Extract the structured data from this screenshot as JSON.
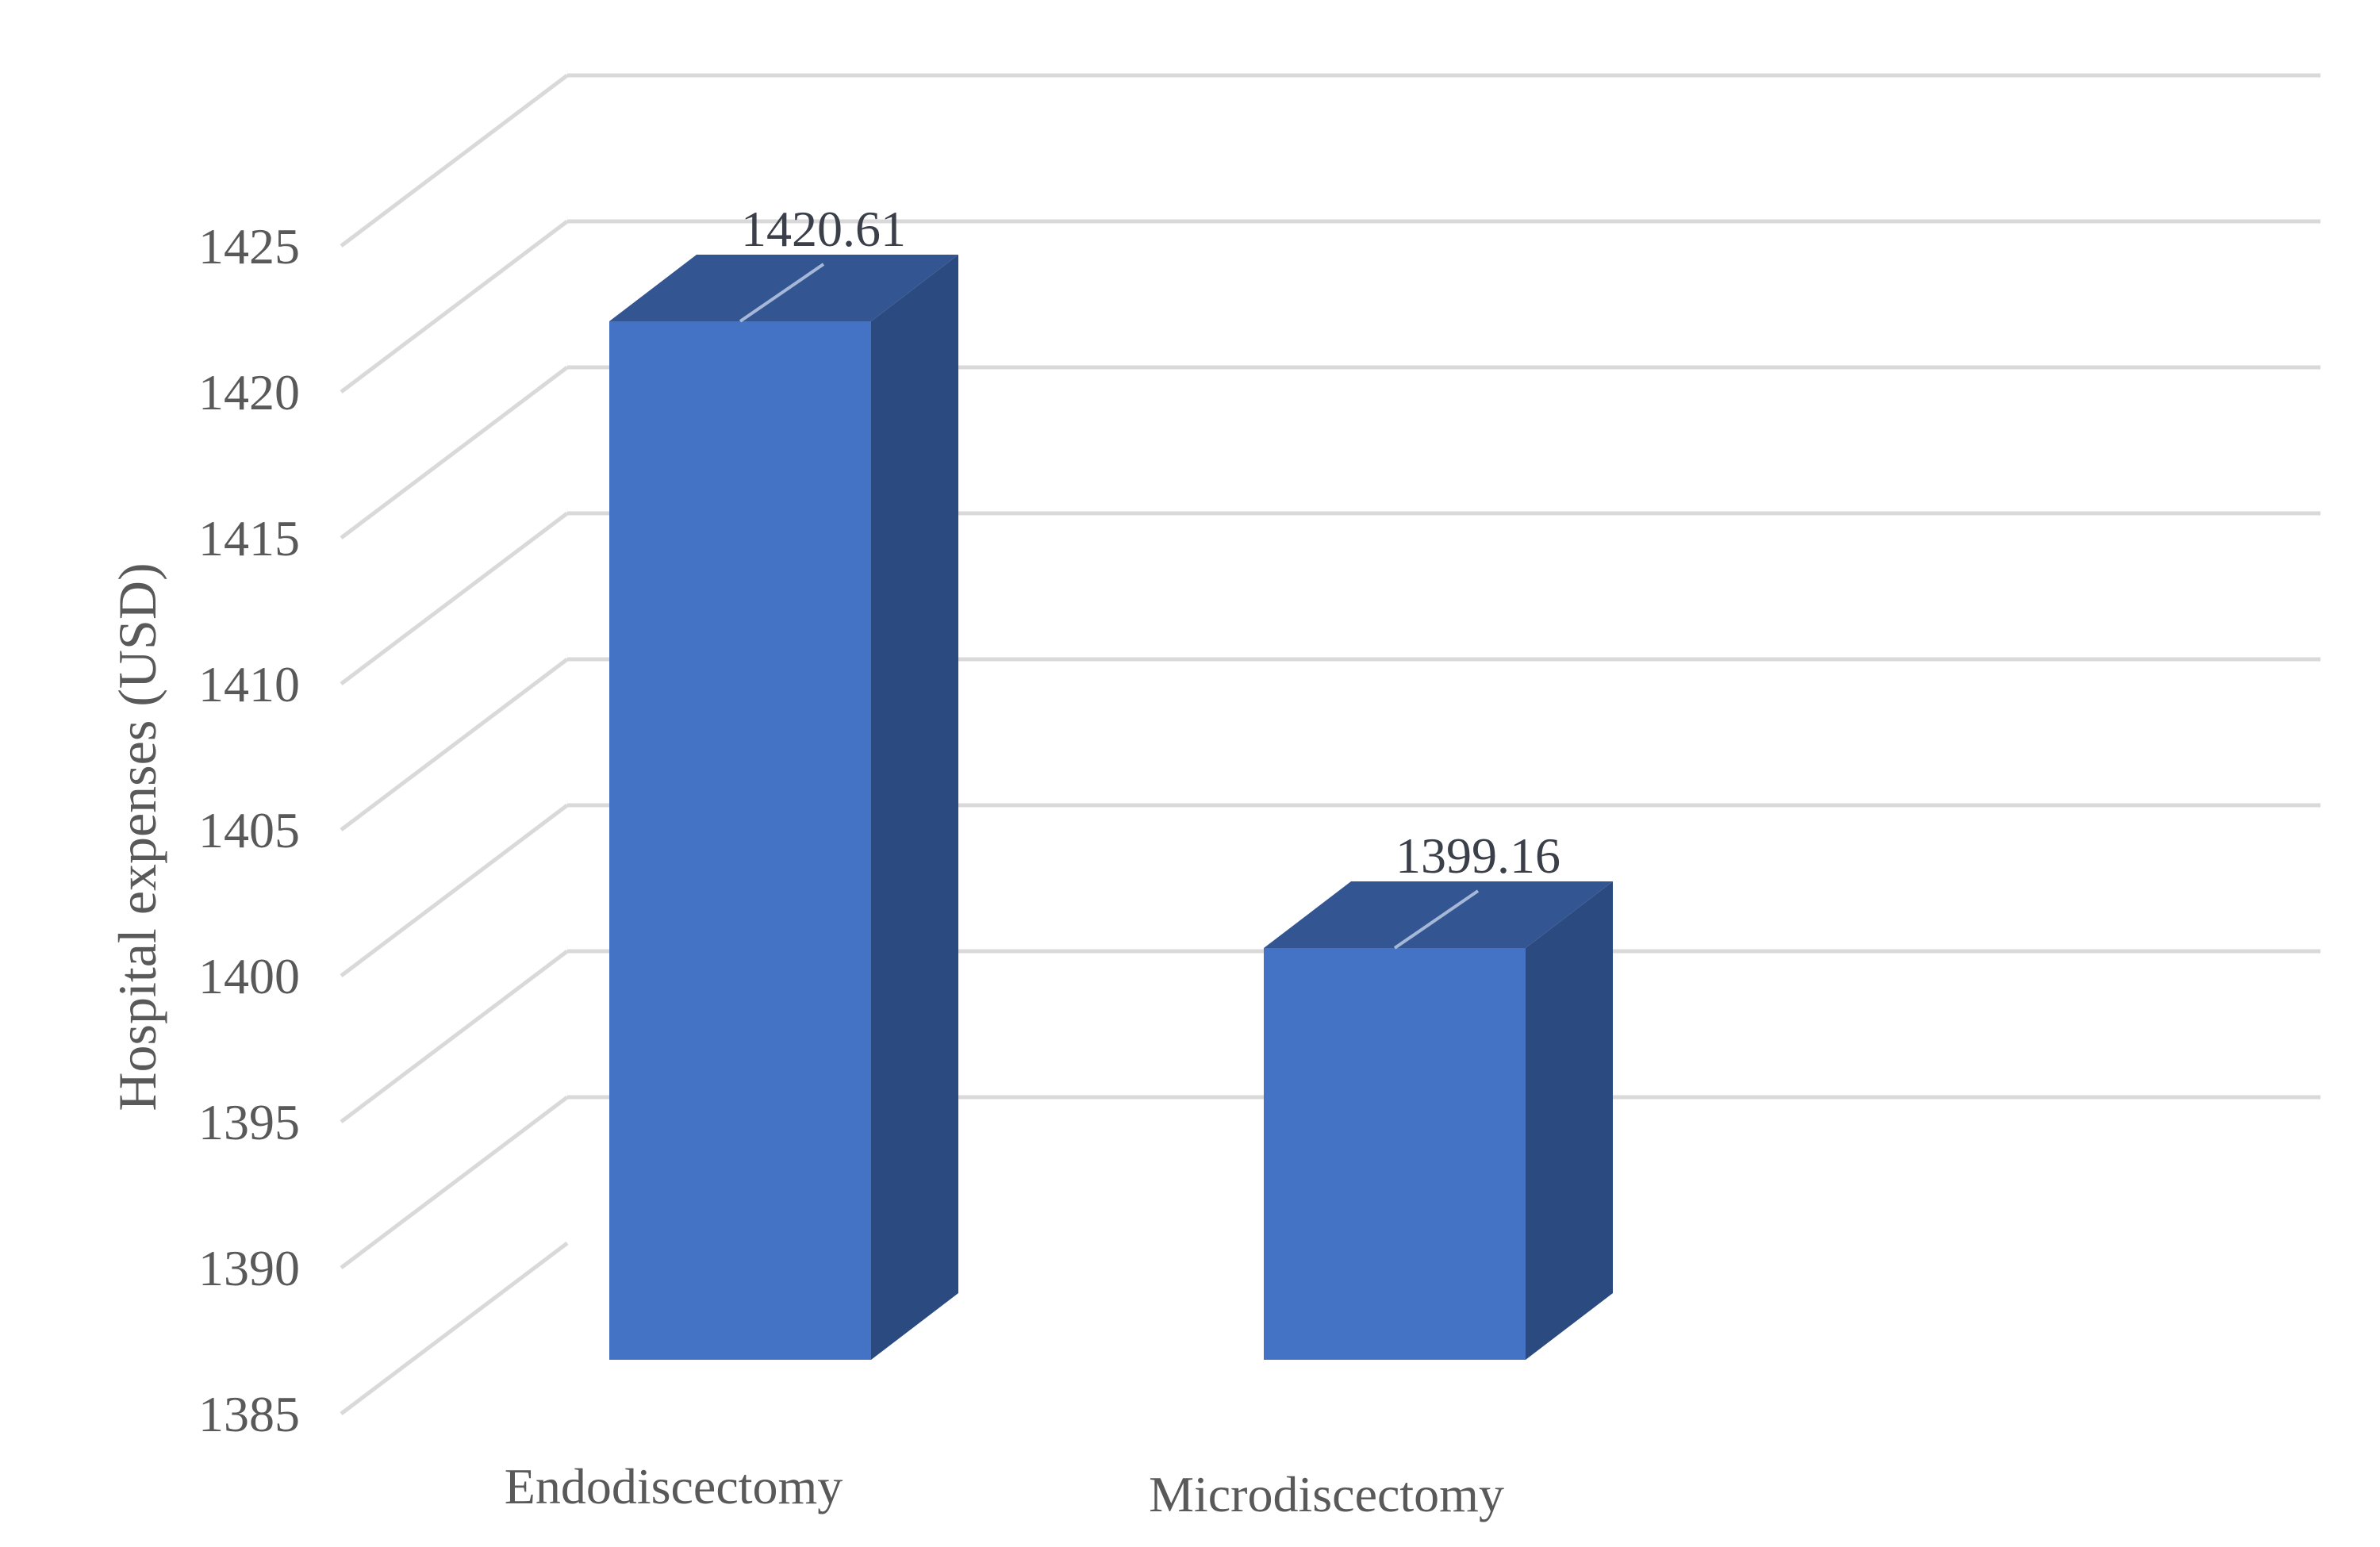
{
  "chart_data": {
    "type": "bar",
    "style": "3d-column",
    "title": "",
    "xlabel": "",
    "ylabel": "Hospital expenses (USD)",
    "categories": [
      "Endodiscectomy",
      "Microdiscectomy"
    ],
    "values": [
      1420.61,
      1399.16
    ],
    "data_labels": [
      "1420.61",
      "1399.16"
    ],
    "ylim": [
      1385,
      1425
    ],
    "yticks": [
      1385,
      1390,
      1395,
      1400,
      1405,
      1410,
      1415,
      1420,
      1425
    ],
    "ytick_labels": [
      "1385",
      "1390",
      "1395",
      "1400",
      "1405",
      "1410",
      "1415",
      "1420",
      "1425"
    ],
    "grid": true,
    "legend": null,
    "colors": {
      "bar_front": "#4472C4",
      "bar_top": "#335592",
      "bar_side": "#2B4A80",
      "grid": "#D9D9D9",
      "text": "#595959"
    }
  }
}
